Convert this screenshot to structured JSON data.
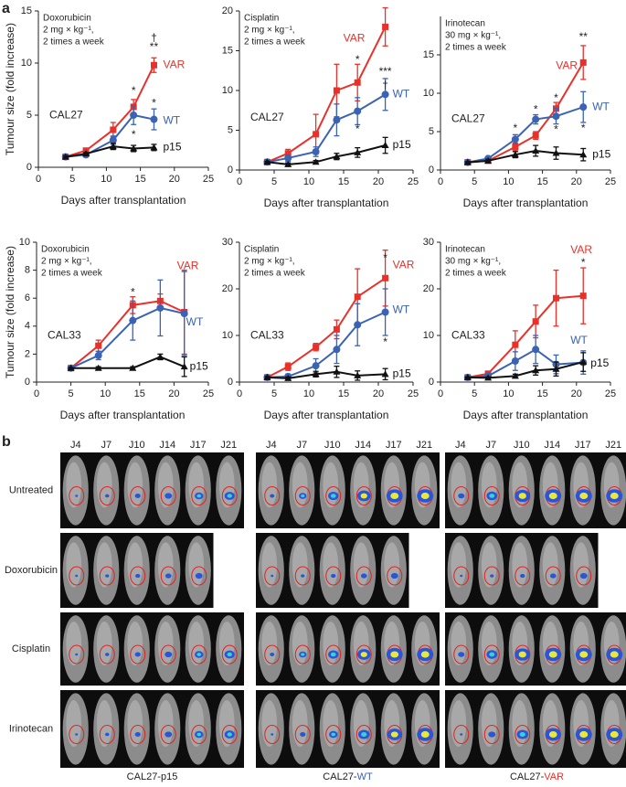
{
  "panel_a_label": "a",
  "chart_data": [
    {
      "type": "line",
      "treatment": [
        "Doxorubicin",
        "2 mg × kg⁻¹,",
        "2 times a week"
      ],
      "cell_line": "CAL27",
      "ylabel": "Tumour size (fold increase)",
      "xlabel": "Days after transplantation",
      "x": [
        4,
        7,
        11,
        14,
        17
      ],
      "xlim": [
        0,
        25
      ],
      "xticks": [
        0,
        5,
        10,
        15,
        20,
        25
      ],
      "ylim": [
        0,
        15
      ],
      "yticks": [
        0,
        5,
        10,
        15
      ],
      "series": [
        {
          "name": "VAR",
          "color": "#e8312a",
          "marker": "square",
          "values": [
            1,
            1.6,
            3.6,
            5.8,
            9.8
          ],
          "errors": [
            0.1,
            0.2,
            0.7,
            0.7,
            0.7
          ]
        },
        {
          "name": "WT",
          "color": "#3a62b5",
          "marker": "circle",
          "values": [
            1,
            1.2,
            2.6,
            5.0,
            4.6
          ],
          "errors": [
            0.1,
            0.2,
            0.4,
            0.9,
            1.0
          ]
        },
        {
          "name": "p15",
          "color": "#111111",
          "marker": "triangle",
          "values": [
            1,
            1.3,
            2.0,
            1.8,
            1.9
          ],
          "errors": [
            0.1,
            0.1,
            0.3,
            0.3,
            0.3
          ]
        }
      ],
      "annotations": [
        {
          "text": "*",
          "x": 14,
          "y": 7.3
        },
        {
          "text": "*",
          "x": 14,
          "y": 3.1
        },
        {
          "text": "†",
          "x": 17,
          "y": 12.4
        },
        {
          "text": "**",
          "x": 17,
          "y": 11.5
        },
        {
          "text": "*",
          "x": 17,
          "y": 6.1
        }
      ]
    },
    {
      "type": "line",
      "treatment": [
        "Cisplatin",
        "2 mg × kg⁻¹,",
        "2 times a week"
      ],
      "cell_line": "CAL27",
      "xlabel": "Days after transplantation",
      "x": [
        4,
        7,
        11,
        14,
        17,
        21
      ],
      "xlim": [
        0,
        25
      ],
      "xticks": [
        0,
        5,
        10,
        15,
        20,
        25
      ],
      "ylim": [
        0,
        20
      ],
      "yticks": [
        0,
        5,
        10,
        15,
        20
      ],
      "series": [
        {
          "name": "VAR",
          "color": "#e8312a",
          "marker": "square",
          "values": [
            1,
            2.1,
            4.5,
            10,
            11,
            18
          ],
          "errors": [
            0.2,
            0.5,
            2.5,
            3.3,
            2.3,
            2.4
          ]
        },
        {
          "name": "WT",
          "color": "#3a62b5",
          "marker": "circle",
          "values": [
            1,
            1.5,
            2.3,
            6.3,
            7.4,
            9.5
          ],
          "errors": [
            0.2,
            0.4,
            0.6,
            2.0,
            1.7,
            2.0
          ]
        },
        {
          "name": "p15",
          "color": "#111111",
          "marker": "triangle",
          "values": [
            1,
            0.7,
            1.0,
            1.7,
            2.2,
            3.1
          ],
          "errors": [
            0.1,
            0.2,
            0.2,
            0.4,
            0.6,
            1.0
          ]
        }
      ],
      "annotations": [
        {
          "text": "*",
          "x": 17,
          "y": 13.8
        },
        {
          "text": "***",
          "x": 21,
          "y": 12.3
        },
        {
          "text": "†",
          "x": 21,
          "y": 10.6
        },
        {
          "text": "*",
          "x": 17,
          "y": 5.1
        }
      ]
    },
    {
      "type": "line",
      "treatment": [
        "Irinotecan",
        "30 mg × kg⁻¹,",
        "2 times a week"
      ],
      "cell_line": "CAL27",
      "xlabel": "Days after transplantation",
      "x": [
        4,
        7,
        11,
        14,
        17,
        21
      ],
      "xlim": [
        0,
        25
      ],
      "xticks": [
        0,
        5,
        10,
        15,
        20,
        25
      ],
      "ylim": [
        0,
        20
      ],
      "yticks": [
        0,
        5,
        10,
        15
      ],
      "series": [
        {
          "name": "VAR",
          "color": "#e8312a",
          "marker": "square",
          "values": [
            1,
            1.2,
            3.0,
            4.5,
            8.0,
            14.0
          ],
          "errors": [
            0.1,
            0.2,
            0.5,
            0.5,
            0.8,
            2.2
          ]
        },
        {
          "name": "WT",
          "color": "#3a62b5",
          "marker": "circle",
          "values": [
            1,
            1.5,
            4.0,
            6.6,
            7.0,
            8.2
          ],
          "errors": [
            0.1,
            0.2,
            0.6,
            0.6,
            1.0,
            2.0
          ]
        },
        {
          "name": "p15",
          "color": "#111111",
          "marker": "triangle",
          "values": [
            1,
            1.2,
            2.0,
            2.5,
            2.2,
            2.0
          ],
          "errors": [
            0.1,
            0.2,
            0.4,
            0.7,
            0.8,
            0.8
          ]
        }
      ],
      "annotations": [
        {
          "text": "*",
          "x": 11,
          "y": 5.4
        },
        {
          "text": "*",
          "x": 14,
          "y": 7.8
        },
        {
          "text": "*",
          "x": 17,
          "y": 9.3
        },
        {
          "text": "**",
          "x": 21,
          "y": 17.3
        },
        {
          "text": "*",
          "x": 17,
          "y": 5.2
        },
        {
          "text": "*",
          "x": 21,
          "y": 5.4
        }
      ]
    },
    {
      "type": "line",
      "treatment": [
        "Doxorubicin",
        "2 mg × kg⁻¹,",
        "2 times a week"
      ],
      "cell_line": "CAL33",
      "ylabel": "Tumour size (fold increase)",
      "xlabel": "Days after transplantation",
      "x": [
        5,
        9,
        14,
        18,
        21.5
      ],
      "xlim": [
        0,
        25
      ],
      "xticks": [
        0,
        5,
        10,
        15,
        20,
        25
      ],
      "ylim": [
        0,
        10
      ],
      "yticks": [
        0,
        2,
        4,
        6,
        8,
        10
      ],
      "series": [
        {
          "name": "VAR",
          "color": "#e8312a",
          "marker": "square",
          "values": [
            1,
            2.6,
            5.5,
            5.8,
            5.0
          ],
          "errors": [
            0.1,
            0.4,
            0.6,
            0.5,
            3.0
          ]
        },
        {
          "name": "WT",
          "color": "#3a62b5",
          "marker": "circle",
          "values": [
            1,
            1.9,
            4.4,
            5.3,
            4.9
          ],
          "errors": [
            0.1,
            0.3,
            1.4,
            2.0,
            3.0
          ]
        },
        {
          "name": "p15",
          "color": "#111111",
          "marker": "triangle",
          "values": [
            1,
            1.0,
            1.0,
            1.8,
            1.1
          ],
          "errors": [
            0.05,
            0.1,
            0.1,
            0.2,
            0.7
          ]
        }
      ],
      "annotations": [
        {
          "text": "*",
          "x": 14,
          "y": 6.4
        }
      ]
    },
    {
      "type": "line",
      "treatment": [
        "Cisplatin",
        "2 mg × kg⁻¹,",
        "2 times a week"
      ],
      "cell_line": "CAL33",
      "xlabel": "Days after transplantation",
      "x": [
        4,
        7,
        11,
        14,
        17,
        21
      ],
      "xlim": [
        0,
        25
      ],
      "xticks": [
        0,
        5,
        10,
        15,
        20,
        25
      ],
      "ylim": [
        0,
        30
      ],
      "yticks": [
        0,
        10,
        20,
        30
      ],
      "series": [
        {
          "name": "VAR",
          "color": "#e8312a",
          "marker": "square",
          "values": [
            1,
            3.3,
            7.5,
            11.3,
            18.3,
            22.3
          ],
          "errors": [
            0.2,
            0.8,
            0.8,
            2.0,
            6.0,
            6.0
          ]
        },
        {
          "name": "WT",
          "color": "#3a62b5",
          "marker": "circle",
          "values": [
            1,
            1.2,
            3.5,
            7.0,
            12.3,
            15.0
          ],
          "errors": [
            0.2,
            0.5,
            1.5,
            3.0,
            4.5,
            5.0
          ]
        },
        {
          "name": "p15",
          "color": "#111111",
          "marker": "triangle",
          "values": [
            1,
            0.8,
            1.7,
            2.2,
            1.4,
            1.7
          ],
          "errors": [
            0.2,
            0.3,
            0.6,
            1.2,
            1.0,
            1.2
          ]
        }
      ],
      "annotations": [
        {
          "text": "*",
          "x": 21,
          "y": 26.5
        },
        {
          "text": "*",
          "x": 21,
          "y": 8.5
        }
      ]
    },
    {
      "type": "line",
      "treatment": [
        "Irinotecan",
        "30 mg × kg⁻¹,",
        "2 times a week"
      ],
      "cell_line": "CAL33",
      "xlabel": "Days after transplantation",
      "x": [
        4,
        7,
        11,
        14,
        17,
        21
      ],
      "xlim": [
        0,
        25
      ],
      "xticks": [
        0,
        5,
        10,
        15,
        20,
        25
      ],
      "ylim": [
        0,
        30
      ],
      "yticks": [
        0,
        10,
        20,
        30
      ],
      "series": [
        {
          "name": "VAR",
          "color": "#e8312a",
          "marker": "square",
          "values": [
            1,
            1.8,
            8.0,
            13.0,
            18.0,
            18.5
          ],
          "errors": [
            0.2,
            0.5,
            3.0,
            3.5,
            6.0,
            6.0
          ]
        },
        {
          "name": "WT",
          "color": "#3a62b5",
          "marker": "circle",
          "values": [
            1,
            1.3,
            4.5,
            7.0,
            3.8,
            4.2
          ],
          "errors": [
            0.2,
            0.4,
            2.0,
            3.0,
            2.0,
            2.5
          ]
        },
        {
          "name": "p15",
          "color": "#111111",
          "marker": "triangle",
          "values": [
            1,
            0.9,
            1.3,
            2.5,
            2.8,
            4.3
          ],
          "errors": [
            0.1,
            0.2,
            0.4,
            1.0,
            1.5,
            2.0
          ]
        }
      ],
      "annotations": [
        {
          "text": "*",
          "x": 21,
          "y": 25.5
        }
      ]
    }
  ],
  "panel_b": {
    "label": "b",
    "days": [
      "J4",
      "J7",
      "J10",
      "J14",
      "J17",
      "J21"
    ],
    "rows": [
      "Untreated",
      "Doxorubicin",
      "Cisplatin",
      "Irinotecan"
    ],
    "groups": [
      {
        "prefix": "CAL27-",
        "name": "p15"
      },
      {
        "prefix": "CAL27-",
        "name": "WT",
        "color": "#3a62b5"
      },
      {
        "prefix": "CAL27-",
        "name": "VAR",
        "color": "#e8312a"
      }
    ]
  }
}
